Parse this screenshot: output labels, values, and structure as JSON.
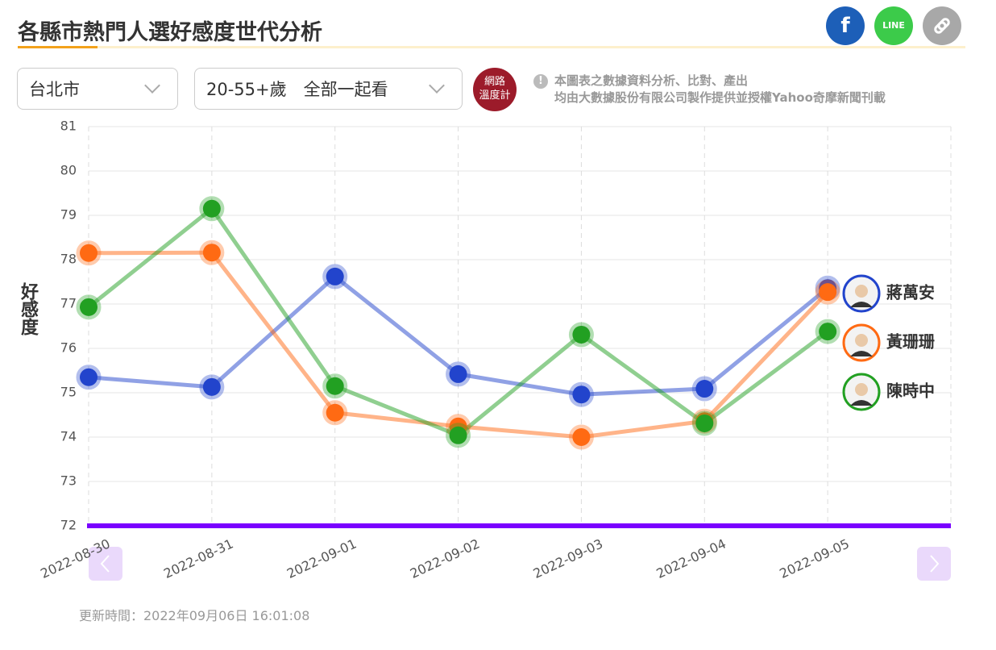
{
  "header": {
    "title": "各縣市熱門人選好感度世代分析",
    "share": {
      "facebook": "f",
      "line": "LINE"
    }
  },
  "filters": {
    "city": "台北市",
    "age": "20-55+歲　全部一起看"
  },
  "logo": {
    "line1": "網路",
    "line2": "溫度計"
  },
  "note": {
    "line1": "本圖表之數據資料分析、比對、產出",
    "line2": "均由大數據股份有限公司製作提供並授權Yahoo奇摩新聞刊載"
  },
  "updated": "更新時間：2022年09月06日 16:01:08",
  "chart_data": {
    "type": "line",
    "y_label": "好感度",
    "categories": [
      "2022-08-30",
      "2022-08-31",
      "2022-09-01",
      "2022-09-02",
      "2022-09-03",
      "2022-09-04",
      "2022-09-05"
    ],
    "series": [
      {
        "name": "蔣萬安",
        "color": "#2244cc",
        "values": [
          75.35,
          75.13,
          77.62,
          75.42,
          74.96,
          75.09,
          77.36
        ]
      },
      {
        "name": "黃珊珊",
        "color": "#ff6a13",
        "values": [
          78.15,
          78.16,
          74.55,
          74.24,
          74.0,
          74.36,
          77.27
        ]
      },
      {
        "name": "陳時中",
        "color": "#22a022",
        "values": [
          76.93,
          79.15,
          75.15,
          74.04,
          76.31,
          74.31,
          76.38
        ]
      }
    ],
    "ylim": [
      72,
      81
    ],
    "yticks": [
      72,
      73,
      74,
      75,
      76,
      77,
      78,
      79,
      80,
      81
    ],
    "grid": true,
    "axis_color": "#7a00ff"
  }
}
